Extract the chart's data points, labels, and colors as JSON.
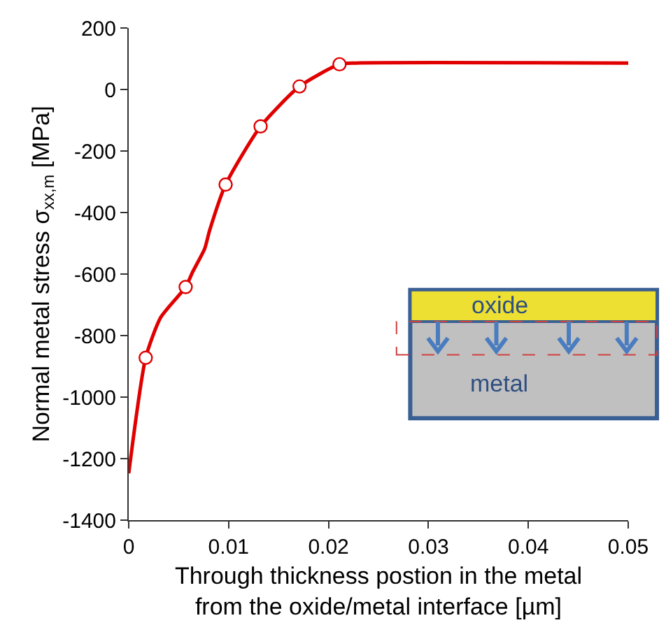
{
  "chart_data": {
    "type": "line",
    "xlabel": "Through thickness postion in the metal\nfrom the oxide/metal interface [µm]",
    "ylabel": "Normal metal stress σ$_{xx,m}$ [MPa]",
    "series": [
      {
        "color": "#e00000",
        "marker": "none",
        "x": [
          0,
          0.0017,
          0.0032,
          0.0057,
          0.0064,
          0.0076,
          0.0081,
          0.0097,
          0.0132,
          0.0171,
          0.0211,
          0.0228,
          0.05
        ],
        "values": [
          -1248,
          -872,
          -741,
          -642,
          -593,
          -518,
          -458,
          -309,
          -120,
          10,
          82,
          86,
          86
        ]
      },
      {
        "type": "scatter",
        "color": "#e00000",
        "marker": "circle",
        "x": [
          0.0017,
          0.0057,
          0.0097,
          0.0132,
          0.0171,
          0.0211
        ],
        "values": [
          -872,
          -642,
          -309,
          -120,
          10,
          82
        ]
      }
    ],
    "xlim": [
      0,
      0.05
    ],
    "xticks": [
      0,
      0.01,
      0.02,
      0.03,
      0.04,
      0.05
    ],
    "ylim": [
      -1400,
      200
    ],
    "yticks": [
      -1400,
      -1200,
      -1000,
      -800,
      -600,
      -400,
      -200,
      0,
      200
    ],
    "annotations": [
      "oxide",
      "metal"
    ]
  }
}
